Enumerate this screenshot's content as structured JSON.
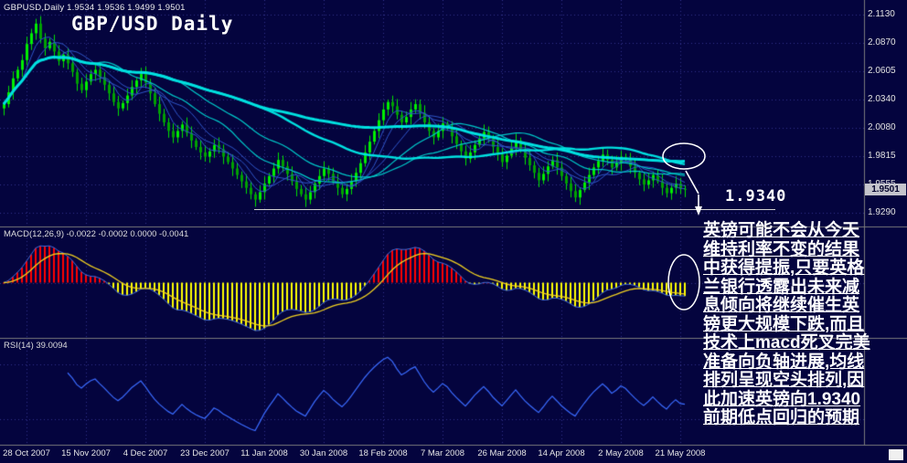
{
  "quote_line": "GBPUSD,Daily 1.9534 1.9536 1.9499 1.9501",
  "title": "GBP/USD Daily",
  "price_axis": {
    "ticks": [
      "2.1130",
      "2.0870",
      "2.0605",
      "2.0340",
      "2.0080",
      "1.9815",
      "1.9555",
      "1.9290"
    ],
    "current": "1.9501"
  },
  "indicators": {
    "macd_label": "MACD(12,26,9) -0.0022 -0.0002 0.0000 -0.0041",
    "rsi_label": "RSI(14) 39.0094"
  },
  "time_axis": {
    "labels": [
      "28 Oct 2007",
      "15 Nov 2007",
      "4 Dec 2007",
      "23 Dec 2007",
      "11 Jan 2008",
      "30 Jan 2008",
      "18 Feb 2008",
      "7 Mar 2008",
      "26 Mar 2008",
      "14 Apr 2008",
      "2 May 2008",
      "21 May 2008"
    ]
  },
  "annotation": {
    "support_label": "1.9340",
    "note_lines": [
      "英镑可能不会从今天",
      "维持利率不变的结果",
      "中获得提振,只要英格",
      "兰银行透露出未来减",
      "息倾向将继续催生英",
      "镑更大规模下跌,而且",
      "技术上macd死叉完美",
      "准备向负轴进展,均线",
      "排列呈现空头排列,因",
      "此加速英镑向1.9340",
      "前期低点回归的预期"
    ]
  },
  "colors": {
    "background": "#04043E",
    "grid": "#31318C",
    "separator": "#7A7A7A",
    "candle_up": "#00EE00",
    "candle_down": "#00A000",
    "candle_wick": "#00E000",
    "ma_blue": "#2E55C8",
    "ma_cyan_thin": "#00C8C8",
    "ma_cyan_thick": "#00E0E0",
    "macd_pos": "#FF0000",
    "macd_neg": "#FFFF00",
    "macd_signal": "#F0D020",
    "macd_line": "#3E6AD8",
    "rsi_line": "#3A6BFF",
    "annotation": "#FFFFFF",
    "axis_text": "#E2E2E2"
  },
  "chart_data": {
    "type": "candlestick",
    "symbol": "GBPUSD",
    "timeframe": "Daily",
    "title": "GBP/USD Daily",
    "ohlc_quote": {
      "open": 1.9534,
      "high": 1.9536,
      "low": 1.9499,
      "close": 1.9501
    },
    "ylim": [
      1.916,
      2.127
    ],
    "price_ticks": [
      2.113,
      2.087,
      2.0605,
      2.034,
      2.008,
      1.9815,
      1.9555,
      1.929
    ],
    "x_labels": [
      "28 Oct 2007",
      "15 Nov 2007",
      "4 Dec 2007",
      "23 Dec 2007",
      "11 Jan 2008",
      "30 Jan 2008",
      "18 Feb 2008",
      "7 Mar 2008",
      "26 Mar 2008",
      "14 Apr 2008",
      "2 May 2008",
      "21 May 2008"
    ],
    "closes": [
      2.03,
      2.041,
      2.054,
      2.062,
      2.071,
      2.086,
      2.096,
      2.105,
      2.091,
      2.082,
      2.088,
      2.079,
      2.07,
      2.076,
      2.068,
      2.06,
      2.049,
      2.043,
      2.051,
      2.058,
      2.062,
      2.055,
      2.048,
      2.04,
      2.032,
      2.026,
      2.031,
      2.038,
      2.046,
      2.052,
      2.058,
      2.05,
      2.04,
      2.03,
      2.021,
      2.013,
      2.005,
      1.999,
      2.005,
      2.011,
      2.003,
      1.996,
      1.99,
      1.985,
      1.981,
      1.986,
      1.992,
      1.988,
      1.981,
      1.976,
      1.97,
      1.964,
      1.958,
      1.952,
      1.946,
      1.941,
      1.948,
      1.956,
      1.963,
      1.97,
      1.978,
      1.972,
      1.965,
      1.958,
      1.951,
      1.946,
      1.941,
      1.948,
      1.956,
      1.963,
      1.97,
      1.965,
      1.958,
      1.952,
      1.946,
      1.951,
      1.958,
      1.966,
      1.975,
      1.985,
      1.995,
      2.005,
      2.015,
      2.025,
      2.032,
      2.028,
      2.02,
      2.013,
      2.018,
      2.025,
      2.03,
      2.022,
      2.013,
      2.005,
      1.999,
      2.005,
      2.012,
      2.008,
      2.0,
      1.993,
      1.986,
      1.979,
      1.985,
      1.992,
      1.998,
      2.004,
      1.998,
      1.99,
      1.983,
      1.976,
      1.982,
      1.989,
      1.996,
      1.988,
      1.98,
      1.973,
      1.966,
      1.959,
      1.965,
      1.972,
      1.978,
      1.971,
      1.963,
      1.956,
      1.949,
      1.943,
      1.95,
      1.957,
      1.964,
      1.971,
      1.977,
      1.983,
      1.978,
      1.971,
      1.975,
      1.981,
      1.978,
      1.972,
      1.966,
      1.96,
      1.955,
      1.959,
      1.964,
      1.958,
      1.952,
      1.947,
      1.952,
      1.956,
      1.951,
      1.95
    ],
    "moving_averages": {
      "blue_ribbon_periods": [
        5,
        8,
        13
      ],
      "cyan_thin_periods": [
        21,
        34
      ],
      "cyan_thick_periods": [
        55,
        95
      ]
    },
    "indicators": {
      "macd": {
        "fast": 12,
        "slow": 26,
        "signal": 9,
        "label_values": [
          -0.0022,
          -0.0002,
          0.0,
          -0.0041
        ]
      },
      "rsi": {
        "period": 14,
        "value": 39.0094,
        "levels": [
          30,
          70
        ]
      }
    },
    "support_level": 1.934
  }
}
